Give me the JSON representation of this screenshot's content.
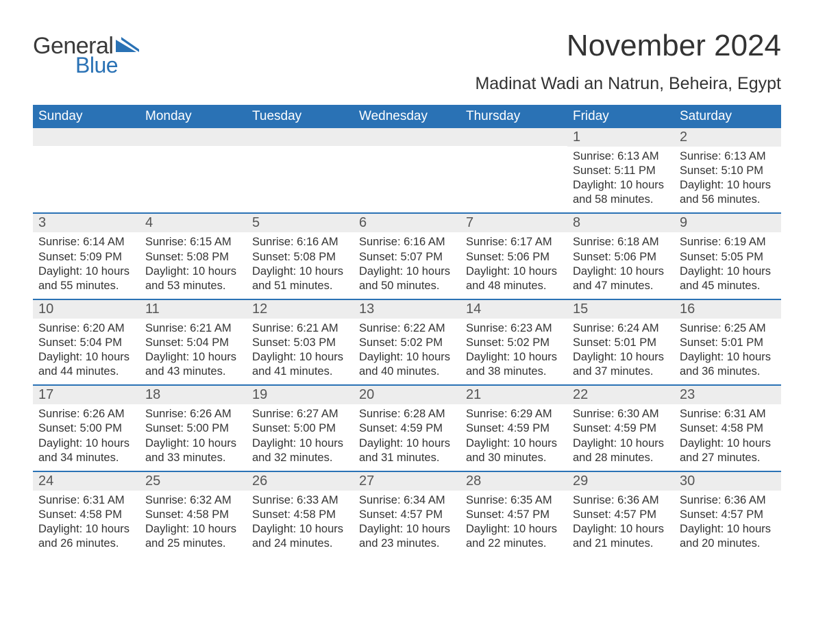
{
  "logo": {
    "text_general": "General",
    "text_blue": "Blue",
    "shape_color": "#2a72b5",
    "general_color": "#3a3a3a"
  },
  "title": {
    "month": "November 2024",
    "location": "Madinat Wadi an Natrun, Beheira, Egypt",
    "month_fontsize": 44,
    "location_fontsize": 25
  },
  "colors": {
    "header_bg": "#2a72b5",
    "header_text": "#ffffff",
    "daynum_bg": "#ededed",
    "daynum_text": "#555555",
    "body_text": "#333333",
    "row_border": "#2a72b5",
    "page_bg": "#ffffff"
  },
  "typography": {
    "weekday_fontsize": 19,
    "daynum_fontsize": 20,
    "body_fontsize": 16.5,
    "font_family": "Arial"
  },
  "weekdays": [
    "Sunday",
    "Monday",
    "Tuesday",
    "Wednesday",
    "Thursday",
    "Friday",
    "Saturday"
  ],
  "weeks": [
    [
      null,
      null,
      null,
      null,
      null,
      {
        "n": "1",
        "sunrise": "Sunrise: 6:13 AM",
        "sunset": "Sunset: 5:11 PM",
        "d1": "Daylight: 10 hours",
        "d2": "and 58 minutes."
      },
      {
        "n": "2",
        "sunrise": "Sunrise: 6:13 AM",
        "sunset": "Sunset: 5:10 PM",
        "d1": "Daylight: 10 hours",
        "d2": "and 56 minutes."
      }
    ],
    [
      {
        "n": "3",
        "sunrise": "Sunrise: 6:14 AM",
        "sunset": "Sunset: 5:09 PM",
        "d1": "Daylight: 10 hours",
        "d2": "and 55 minutes."
      },
      {
        "n": "4",
        "sunrise": "Sunrise: 6:15 AM",
        "sunset": "Sunset: 5:08 PM",
        "d1": "Daylight: 10 hours",
        "d2": "and 53 minutes."
      },
      {
        "n": "5",
        "sunrise": "Sunrise: 6:16 AM",
        "sunset": "Sunset: 5:08 PM",
        "d1": "Daylight: 10 hours",
        "d2": "and 51 minutes."
      },
      {
        "n": "6",
        "sunrise": "Sunrise: 6:16 AM",
        "sunset": "Sunset: 5:07 PM",
        "d1": "Daylight: 10 hours",
        "d2": "and 50 minutes."
      },
      {
        "n": "7",
        "sunrise": "Sunrise: 6:17 AM",
        "sunset": "Sunset: 5:06 PM",
        "d1": "Daylight: 10 hours",
        "d2": "and 48 minutes."
      },
      {
        "n": "8",
        "sunrise": "Sunrise: 6:18 AM",
        "sunset": "Sunset: 5:06 PM",
        "d1": "Daylight: 10 hours",
        "d2": "and 47 minutes."
      },
      {
        "n": "9",
        "sunrise": "Sunrise: 6:19 AM",
        "sunset": "Sunset: 5:05 PM",
        "d1": "Daylight: 10 hours",
        "d2": "and 45 minutes."
      }
    ],
    [
      {
        "n": "10",
        "sunrise": "Sunrise: 6:20 AM",
        "sunset": "Sunset: 5:04 PM",
        "d1": "Daylight: 10 hours",
        "d2": "and 44 minutes."
      },
      {
        "n": "11",
        "sunrise": "Sunrise: 6:21 AM",
        "sunset": "Sunset: 5:04 PM",
        "d1": "Daylight: 10 hours",
        "d2": "and 43 minutes."
      },
      {
        "n": "12",
        "sunrise": "Sunrise: 6:21 AM",
        "sunset": "Sunset: 5:03 PM",
        "d1": "Daylight: 10 hours",
        "d2": "and 41 minutes."
      },
      {
        "n": "13",
        "sunrise": "Sunrise: 6:22 AM",
        "sunset": "Sunset: 5:02 PM",
        "d1": "Daylight: 10 hours",
        "d2": "and 40 minutes."
      },
      {
        "n": "14",
        "sunrise": "Sunrise: 6:23 AM",
        "sunset": "Sunset: 5:02 PM",
        "d1": "Daylight: 10 hours",
        "d2": "and 38 minutes."
      },
      {
        "n": "15",
        "sunrise": "Sunrise: 6:24 AM",
        "sunset": "Sunset: 5:01 PM",
        "d1": "Daylight: 10 hours",
        "d2": "and 37 minutes."
      },
      {
        "n": "16",
        "sunrise": "Sunrise: 6:25 AM",
        "sunset": "Sunset: 5:01 PM",
        "d1": "Daylight: 10 hours",
        "d2": "and 36 minutes."
      }
    ],
    [
      {
        "n": "17",
        "sunrise": "Sunrise: 6:26 AM",
        "sunset": "Sunset: 5:00 PM",
        "d1": "Daylight: 10 hours",
        "d2": "and 34 minutes."
      },
      {
        "n": "18",
        "sunrise": "Sunrise: 6:26 AM",
        "sunset": "Sunset: 5:00 PM",
        "d1": "Daylight: 10 hours",
        "d2": "and 33 minutes."
      },
      {
        "n": "19",
        "sunrise": "Sunrise: 6:27 AM",
        "sunset": "Sunset: 5:00 PM",
        "d1": "Daylight: 10 hours",
        "d2": "and 32 minutes."
      },
      {
        "n": "20",
        "sunrise": "Sunrise: 6:28 AM",
        "sunset": "Sunset: 4:59 PM",
        "d1": "Daylight: 10 hours",
        "d2": "and 31 minutes."
      },
      {
        "n": "21",
        "sunrise": "Sunrise: 6:29 AM",
        "sunset": "Sunset: 4:59 PM",
        "d1": "Daylight: 10 hours",
        "d2": "and 30 minutes."
      },
      {
        "n": "22",
        "sunrise": "Sunrise: 6:30 AM",
        "sunset": "Sunset: 4:59 PM",
        "d1": "Daylight: 10 hours",
        "d2": "and 28 minutes."
      },
      {
        "n": "23",
        "sunrise": "Sunrise: 6:31 AM",
        "sunset": "Sunset: 4:58 PM",
        "d1": "Daylight: 10 hours",
        "d2": "and 27 minutes."
      }
    ],
    [
      {
        "n": "24",
        "sunrise": "Sunrise: 6:31 AM",
        "sunset": "Sunset: 4:58 PM",
        "d1": "Daylight: 10 hours",
        "d2": "and 26 minutes."
      },
      {
        "n": "25",
        "sunrise": "Sunrise: 6:32 AM",
        "sunset": "Sunset: 4:58 PM",
        "d1": "Daylight: 10 hours",
        "d2": "and 25 minutes."
      },
      {
        "n": "26",
        "sunrise": "Sunrise: 6:33 AM",
        "sunset": "Sunset: 4:58 PM",
        "d1": "Daylight: 10 hours",
        "d2": "and 24 minutes."
      },
      {
        "n": "27",
        "sunrise": "Sunrise: 6:34 AM",
        "sunset": "Sunset: 4:57 PM",
        "d1": "Daylight: 10 hours",
        "d2": "and 23 minutes."
      },
      {
        "n": "28",
        "sunrise": "Sunrise: 6:35 AM",
        "sunset": "Sunset: 4:57 PM",
        "d1": "Daylight: 10 hours",
        "d2": "and 22 minutes."
      },
      {
        "n": "29",
        "sunrise": "Sunrise: 6:36 AM",
        "sunset": "Sunset: 4:57 PM",
        "d1": "Daylight: 10 hours",
        "d2": "and 21 minutes."
      },
      {
        "n": "30",
        "sunrise": "Sunrise: 6:36 AM",
        "sunset": "Sunset: 4:57 PM",
        "d1": "Daylight: 10 hours",
        "d2": "and 20 minutes."
      }
    ]
  ]
}
